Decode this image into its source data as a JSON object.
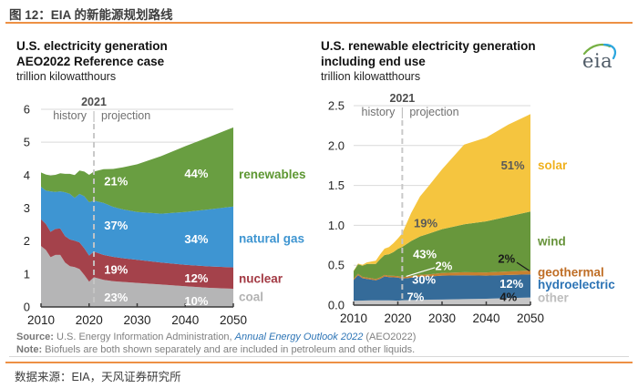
{
  "header": {
    "title": "图 12：EIA 的新能源规划路线",
    "accent_color": "#ed9044"
  },
  "logo": {
    "text": "eia"
  },
  "footnote": {
    "source_label": "Source:",
    "source_text": " U.S. Energy Information Administration, ",
    "source_link": "Annual Energy Outlook 2022",
    "source_suffix": " (AEO2022)",
    "note_label": "Note:",
    "note_text": " Biofuels are both shown separately and are included in petroleum and other liquids."
  },
  "footer": {
    "text": "数据来源：EIA，天风证券研究所"
  },
  "chart_data": [
    {
      "name": "us-electricity-generation",
      "type": "area",
      "stacked": true,
      "title_lines": [
        "U.S. electricity generation",
        "AEO2022 Reference case"
      ],
      "unit_label": "trillion kilowatthours",
      "x_range": [
        2010,
        2050
      ],
      "ylim": [
        0,
        6
      ],
      "grid": true,
      "yticks": [
        {
          "v": 0,
          "label": "0"
        },
        {
          "v": 1,
          "label": "1"
        },
        {
          "v": 2,
          "label": "2"
        },
        {
          "v": 3,
          "label": "3"
        },
        {
          "v": 4,
          "label": "4"
        },
        {
          "v": 5,
          "label": "5"
        },
        {
          "v": 6,
          "label": "6"
        }
      ],
      "xticks": [
        {
          "v": 2010,
          "label": "2010"
        },
        {
          "v": 2020,
          "label": "2020"
        },
        {
          "v": 2030,
          "label": "2030"
        },
        {
          "v": 2040,
          "label": "2040"
        },
        {
          "v": 2050,
          "label": "2050"
        }
      ],
      "divider": {
        "year": 2021,
        "label": "2021",
        "left_label": "history",
        "right_label": "projection"
      },
      "years": [
        2010,
        2011,
        2012,
        2013,
        2014,
        2015,
        2016,
        2017,
        2018,
        2019,
        2020,
        2021,
        2023,
        2025,
        2027,
        2030,
        2035,
        2040,
        2045,
        2050
      ],
      "series": [
        {
          "name": "coal",
          "color": "#b5b5b6",
          "values": [
            1.85,
            1.73,
            1.51,
            1.58,
            1.58,
            1.35,
            1.24,
            1.21,
            1.15,
            0.97,
            0.77,
            0.9,
            0.82,
            0.78,
            0.76,
            0.73,
            0.68,
            0.63,
            0.58,
            0.55
          ]
        },
        {
          "name": "nuclear",
          "color": "#a4424b",
          "values": [
            0.81,
            0.79,
            0.77,
            0.79,
            0.8,
            0.8,
            0.81,
            0.8,
            0.81,
            0.81,
            0.79,
            0.78,
            0.76,
            0.74,
            0.72,
            0.7,
            0.67,
            0.65,
            0.65,
            0.65
          ]
        },
        {
          "name": "natural gas",
          "color": "#3e95d2",
          "values": [
            0.99,
            1.01,
            1.23,
            1.12,
            1.13,
            1.33,
            1.38,
            1.3,
            1.47,
            1.58,
            1.62,
            1.55,
            1.58,
            1.52,
            1.48,
            1.45,
            1.48,
            1.6,
            1.73,
            1.85
          ]
        },
        {
          "name": "renewables",
          "color": "#699e41",
          "values": [
            0.43,
            0.49,
            0.48,
            0.52,
            0.55,
            0.56,
            0.61,
            0.69,
            0.71,
            0.75,
            0.83,
            0.88,
            1.02,
            1.15,
            1.28,
            1.45,
            1.75,
            2.0,
            2.2,
            2.4
          ]
        }
      ],
      "pct_labels": [
        {
          "text": "21%",
          "year": 2025.6,
          "value": 3.82,
          "color": "#ffffff"
        },
        {
          "text": "37%",
          "year": 2025.6,
          "value": 2.47,
          "color": "#ffffff"
        },
        {
          "text": "19%",
          "year": 2025.6,
          "value": 1.13,
          "color": "#ffffff"
        },
        {
          "text": "23%",
          "year": 2025.6,
          "value": 0.29,
          "color": "#ffffff"
        },
        {
          "text": "44%",
          "year": 2042.3,
          "value": 4.05,
          "color": "#ffffff"
        },
        {
          "text": "34%",
          "year": 2042.3,
          "value": 2.06,
          "color": "#ffffff"
        },
        {
          "text": "12%",
          "year": 2042.3,
          "value": 0.87,
          "color": "#ffffff"
        },
        {
          "text": "10%",
          "year": 2042.3,
          "value": 0.18,
          "color": "#ffffff"
        }
      ],
      "side_labels": [
        {
          "text": "renewables",
          "value": 4.02,
          "color": "#5d9732"
        },
        {
          "text": "natural gas",
          "value": 2.08,
          "color": "#3e95d1"
        },
        {
          "text": "nuclear",
          "value": 0.86,
          "color": "#a33a44"
        },
        {
          "text": "coal",
          "value": 0.3,
          "color": "#b3b3b3"
        }
      ]
    },
    {
      "name": "us-renewable-electricity-generation",
      "type": "area",
      "stacked": true,
      "title_lines": [
        "U.S. renewable electricity generation",
        "including end use"
      ],
      "unit_label": "trillion kilowatthours",
      "x_range": [
        2010,
        2050
      ],
      "ylim": [
        0,
        2.5
      ],
      "grid": true,
      "yticks": [
        {
          "v": 0,
          "label": "0.0"
        },
        {
          "v": 0.5,
          "label": "0.5"
        },
        {
          "v": 1,
          "label": "1.0"
        },
        {
          "v": 1.5,
          "label": "1.5"
        },
        {
          "v": 2,
          "label": "2.0"
        },
        {
          "v": 2.5,
          "label": "2.5"
        }
      ],
      "xticks": [
        {
          "v": 2010,
          "label": "2010"
        },
        {
          "v": 2020,
          "label": "2020"
        },
        {
          "v": 2030,
          "label": "2030"
        },
        {
          "v": 2040,
          "label": "2040"
        },
        {
          "v": 2050,
          "label": "2050"
        }
      ],
      "divider": {
        "year": 2021,
        "label": "2021",
        "left_label": "history",
        "right_label": "projection"
      },
      "years": [
        2010,
        2011,
        2012,
        2013,
        2014,
        2015,
        2016,
        2017,
        2018,
        2019,
        2020,
        2021,
        2023,
        2025,
        2027,
        2030,
        2035,
        2040,
        2045,
        2050
      ],
      "series": [
        {
          "name": "other",
          "color": "#c6c6c7",
          "values": [
            0.055,
            0.056,
            0.057,
            0.058,
            0.06,
            0.06,
            0.06,
            0.06,
            0.06,
            0.058,
            0.056,
            0.062,
            0.064,
            0.066,
            0.068,
            0.07,
            0.075,
            0.08,
            0.088,
            0.096
          ]
        },
        {
          "name": "hydroelectric",
          "color": "#356b99",
          "values": [
            0.26,
            0.32,
            0.28,
            0.27,
            0.26,
            0.25,
            0.27,
            0.3,
            0.29,
            0.29,
            0.29,
            0.27,
            0.28,
            0.29,
            0.29,
            0.3,
            0.3,
            0.29,
            0.29,
            0.29
          ]
        },
        {
          "name": "geothermal",
          "color": "#c8802f",
          "values": [
            0.017,
            0.017,
            0.017,
            0.017,
            0.017,
            0.017,
            0.017,
            0.018,
            0.018,
            0.018,
            0.018,
            0.017,
            0.02,
            0.025,
            0.028,
            0.032,
            0.037,
            0.04,
            0.044,
            0.048
          ]
        },
        {
          "name": "wind",
          "color": "#68973c",
          "values": [
            0.095,
            0.12,
            0.14,
            0.17,
            0.18,
            0.19,
            0.23,
            0.25,
            0.27,
            0.3,
            0.34,
            0.38,
            0.44,
            0.48,
            0.51,
            0.55,
            0.6,
            0.64,
            0.69,
            0.74
          ]
        },
        {
          "name": "solar",
          "color": "#f5c53f",
          "values": [
            0.005,
            0.007,
            0.01,
            0.02,
            0.03,
            0.04,
            0.06,
            0.08,
            0.09,
            0.11,
            0.13,
            0.17,
            0.35,
            0.5,
            0.6,
            0.75,
            1.0,
            1.05,
            1.15,
            1.22
          ]
        }
      ],
      "pct_labels": [
        {
          "text": "19%",
          "year": 2026.3,
          "value": 1.03,
          "color": "#595959"
        },
        {
          "text": "51%",
          "year": 2046.0,
          "value": 1.75,
          "color": "#595959"
        },
        {
          "text": "43%",
          "year": 2026.1,
          "value": 0.64,
          "color": "#ffffff"
        },
        {
          "text": "2%",
          "year": 2030.4,
          "value": 0.49,
          "color": "#ffffff",
          "leader": {
            "year1": 2028.4,
            "value1": 0.47,
            "year2": 2021.9,
            "value2": 0.36,
            "color": "#ffffff"
          }
        },
        {
          "text": "30%",
          "year": 2025.9,
          "value": 0.32,
          "color": "#ffffff"
        },
        {
          "text": "7%",
          "year": 2024.0,
          "value": 0.1,
          "color": "#ffffff"
        },
        {
          "text": "12%",
          "year": 2045.7,
          "value": 0.27,
          "color": "#ffffff"
        },
        {
          "text": "4%",
          "year": 2045.0,
          "value": 0.1,
          "color": "#1a1a1a"
        },
        {
          "text": "2%",
          "year": 2044.6,
          "value": 0.58,
          "color": "#1a1a1a",
          "leader": {
            "year1": 2046.9,
            "value1": 0.535,
            "year2": 2049.8,
            "value2": 0.43,
            "color": "#1a1a1a"
          }
        }
      ],
      "side_labels": [
        {
          "text": "solar",
          "value": 1.75,
          "color": "#f0b11e"
        },
        {
          "text": "wind",
          "value": 0.8,
          "color": "#67933a"
        },
        {
          "text": "geothermal",
          "value": 0.41,
          "color": "#bf6e26"
        },
        {
          "text": "hydroelectric",
          "value": 0.257,
          "color": "#2d74b5"
        },
        {
          "text": "other",
          "value": 0.091,
          "color": "#bdbdbd"
        }
      ]
    }
  ]
}
